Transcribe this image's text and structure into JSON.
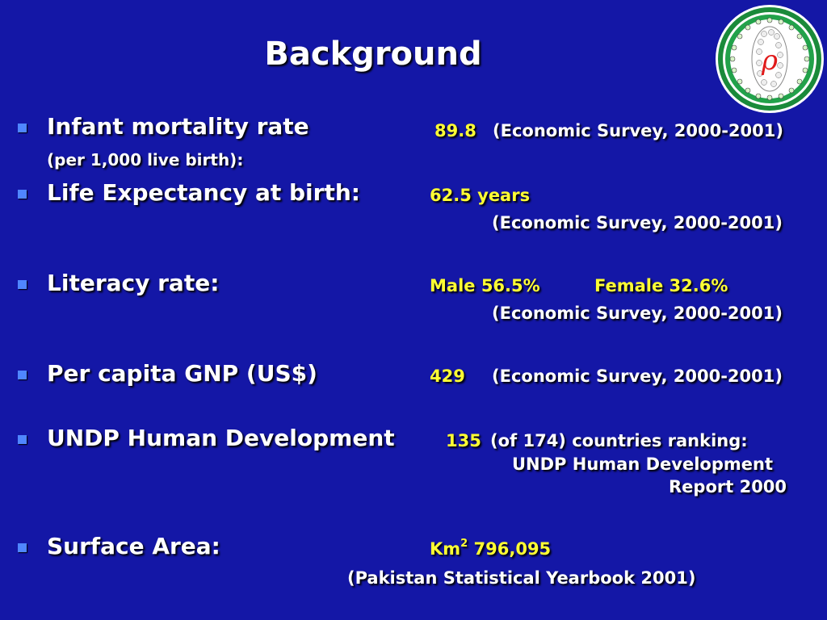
{
  "title": "Background",
  "colors": {
    "background": "#1417a6",
    "value": "#ffff33",
    "bullet": "#4f86ff"
  },
  "logo": {
    "icon": "emblem-logo-icon",
    "monogram": "ρ"
  },
  "items": [
    {
      "label": "Infant mortality rate",
      "sublabel": "(per 1,000 live birth):",
      "value": "89.8",
      "source": "(Economic Survey, 2000-2001)"
    },
    {
      "label": "Life Expectancy at birth:",
      "value": "62.5 years",
      "source": "(Economic Survey, 2000-2001)"
    },
    {
      "label": "Literacy rate:",
      "value_male": "Male 56.5%",
      "value_female": "Female 32.6%",
      "source": "(Economic Survey, 2000-2001)"
    },
    {
      "label": "Per capita GNP (US$)",
      "value": "429",
      "source": "(Economic Survey, 2000-2001)"
    },
    {
      "label": "UNDP Human Development",
      "value": "135",
      "value_rest": "(of 174) countries ranking:",
      "source_line1": "UNDP Human Development",
      "source_line2": "Report 2000"
    },
    {
      "label": "Surface Area:",
      "unit": "Km",
      "unit_sup": "2",
      "value": "796,095",
      "source": "(Pakistan Statistical Yearbook 2001)"
    }
  ]
}
